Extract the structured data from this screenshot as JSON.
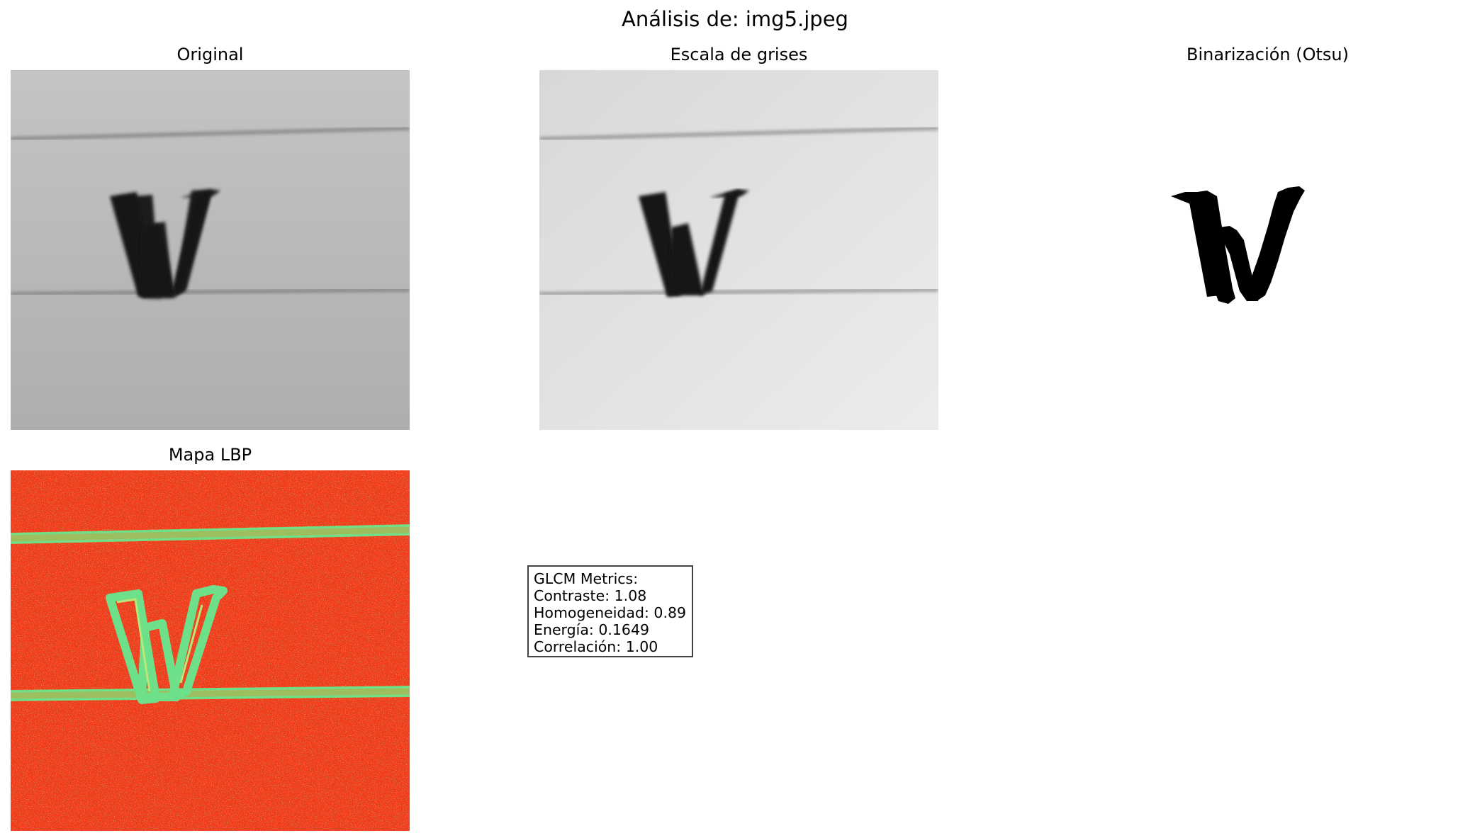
{
  "figure": {
    "title": "Análisis de: img5.jpeg"
  },
  "panels": {
    "original": {
      "title": "Original"
    },
    "gray": {
      "title": "Escala de grises"
    },
    "binary": {
      "title": "Binarización (Otsu)"
    },
    "lbp": {
      "title": "Mapa LBP"
    }
  },
  "metrics": {
    "heading": "GLCM Metrics:",
    "contrast": "Contraste: 1.08",
    "homogeneity": "Homogeneidad: 0.89",
    "energy": "Energía: 0.1649",
    "correlation": "Correlación: 1.00"
  },
  "colors": {
    "paper_original": "#b8b8b6",
    "paper_gray": "#e2e2e2",
    "ink": "#151515",
    "lbp_background": "#f03a1a",
    "lbp_edges": "#6ee08a"
  }
}
